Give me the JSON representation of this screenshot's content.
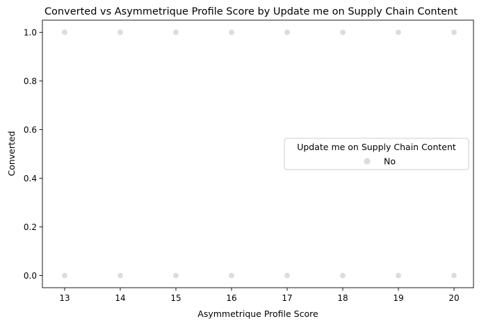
{
  "chart_data": {
    "type": "scatter",
    "title": "Converted vs Asymmetrique Profile Score by Update me on Supply Chain Content",
    "xlabel": "Asymmetrique Profile Score",
    "ylabel": "Converted",
    "xlim": [
      12.6,
      20.35
    ],
    "ylim": [
      -0.05,
      1.05
    ],
    "xticks": [
      13,
      14,
      15,
      16,
      17,
      18,
      19,
      20
    ],
    "yticks": [
      0.0,
      0.2,
      0.4,
      0.6,
      0.8,
      1.0
    ],
    "ytick_labels": [
      "0.0",
      "0.2",
      "0.4",
      "0.6",
      "0.8",
      "1.0"
    ],
    "grid": false,
    "legend": {
      "title": "Update me on Supply Chain Content",
      "position": "center-right"
    },
    "series": [
      {
        "name": "No",
        "color": "#dcdcdc",
        "points": [
          {
            "x": 13,
            "y": 0
          },
          {
            "x": 14,
            "y": 0
          },
          {
            "x": 15,
            "y": 0
          },
          {
            "x": 16,
            "y": 0
          },
          {
            "x": 17,
            "y": 0
          },
          {
            "x": 18,
            "y": 0
          },
          {
            "x": 19,
            "y": 0
          },
          {
            "x": 20,
            "y": 0
          },
          {
            "x": 13,
            "y": 1
          },
          {
            "x": 14,
            "y": 1
          },
          {
            "x": 15,
            "y": 1
          },
          {
            "x": 16,
            "y": 1
          },
          {
            "x": 17,
            "y": 1
          },
          {
            "x": 18,
            "y": 1
          },
          {
            "x": 19,
            "y": 1
          },
          {
            "x": 20,
            "y": 1
          }
        ]
      }
    ]
  }
}
